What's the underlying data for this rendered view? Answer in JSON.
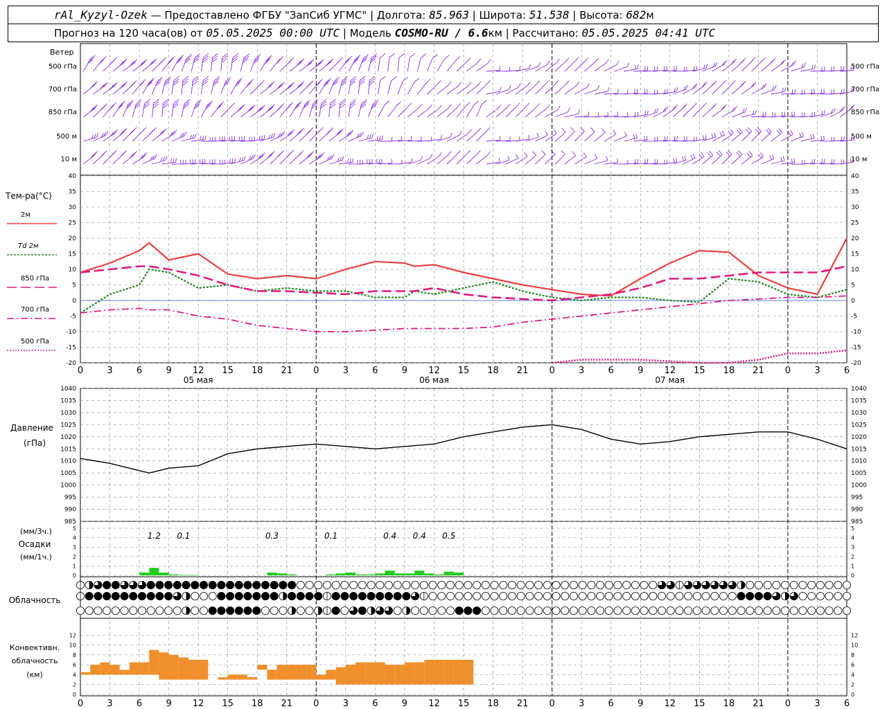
{
  "header": {
    "station": "rAl_Kyzyl-Ozek",
    "provider": " — Предоставлено ФГБУ \"ЗапСиб УГМС\" | ",
    "lon_label": "Долгота: ",
    "lon_value": "85.963",
    "lat_label": " | Широта: ",
    "lat_value": "51.538",
    "alt_label": " | Высота: ",
    "alt_value": "682",
    "alt_unit": "м",
    "forecast_label": "Прогноз на 120 часа(ов) от ",
    "forecast_time": "05.05.2025 00:00 UTC",
    "model_label": " | Модель ",
    "model_name": "COSMO-RU / 6.6",
    "model_unit": "км",
    "calc_label": " | Рассчитано: ",
    "calc_time": "05.05.2025 04:41 UTC"
  },
  "colors": {
    "t2m": "#e8413c",
    "td2m": "#1e8a1e",
    "t850": "#e0197d",
    "t700": "#e0197d",
    "t500": "#e0197d",
    "pressure": "#000000",
    "precip": "#22cc22",
    "convective": "#f0902c",
    "wind": "#8a2be2",
    "zero_line": "#3355ff",
    "grid": "#888888"
  },
  "wind_panel": {
    "title": "Ветер",
    "levels": [
      "500 гПа",
      "700 гПа",
      "850 гПа",
      "500 м",
      "10  м"
    ]
  },
  "x_axis": {
    "hour_ticks": [
      "0",
      "3",
      "6",
      "9",
      "12",
      "15",
      "18",
      "21",
      "0",
      "3",
      "6",
      "9",
      "12",
      "15",
      "18",
      "21",
      "0",
      "3",
      "6",
      "9",
      "12",
      "15",
      "18",
      "21",
      "0",
      "3",
      "6"
    ],
    "dates": [
      "05 мая",
      "06 мая",
      "07 мая"
    ]
  },
  "chart_data": [
    {
      "type": "line",
      "panel": "temperature",
      "ylabel": "Тем-ра(°C)",
      "ylim": [
        -20,
        40
      ],
      "yticks": [
        "40",
        "35",
        "30",
        "25",
        "20",
        "15",
        "10",
        "5",
        "0",
        "-5",
        "-10",
        "-15",
        "-20"
      ],
      "x": [
        0,
        3,
        6,
        7,
        9,
        12,
        15,
        18,
        21,
        24,
        27,
        30,
        33,
        34,
        36,
        39,
        42,
        45,
        48,
        51,
        54,
        57,
        60,
        63,
        66,
        69,
        72,
        75,
        78
      ],
      "series": [
        {
          "name": "2м",
          "values": [
            9,
            12,
            16,
            18.5,
            13,
            15,
            8.5,
            7,
            8,
            7,
            10,
            12.5,
            12,
            11,
            11.5,
            9,
            7,
            5,
            3.5,
            2,
            1.5,
            7,
            12,
            16,
            15.5,
            8,
            4,
            2,
            20
          ]
        },
        {
          "name": "Td  2м",
          "values": [
            -4,
            2,
            5,
            10,
            9,
            4,
            5,
            3,
            4,
            3,
            3,
            1,
            1,
            3,
            2,
            4,
            6,
            3,
            1,
            0,
            1,
            1,
            0,
            -0.5,
            7,
            6,
            2,
            1,
            3.5
          ]
        },
        {
          "name": "850 гПа",
          "values": [
            9,
            10,
            11,
            11,
            10,
            8,
            5,
            3,
            3,
            2.5,
            2,
            3,
            3,
            3,
            4,
            2,
            1,
            0.5,
            0,
            1,
            2,
            4,
            7,
            7,
            8,
            9,
            9,
            9,
            11
          ]
        },
        {
          "name": "700 гПа",
          "values": [
            -4,
            -3,
            -2.5,
            -3,
            -3,
            -5,
            -6,
            -8,
            -9,
            -10,
            -10,
            -9.5,
            -9,
            -9,
            -9,
            -9,
            -8.5,
            -7,
            -6,
            -5,
            -4,
            -3,
            -2,
            -1,
            0,
            0.5,
            1,
            1,
            1.5
          ]
        },
        {
          "name": "500 гПа",
          "values": [
            null,
            null,
            null,
            null,
            null,
            null,
            null,
            null,
            null,
            null,
            null,
            null,
            null,
            null,
            null,
            null,
            null,
            null,
            -20,
            -19,
            -19,
            -19,
            -19.5,
            -20,
            -20,
            -19,
            -17,
            -17,
            -16
          ]
        }
      ]
    },
    {
      "type": "line",
      "panel": "pressure",
      "ylabel": "Давление",
      "ylabel2": "(гПа)",
      "ylim": [
        985,
        1040
      ],
      "yticks": [
        "1040",
        "1035",
        "1030",
        "1025",
        "1020",
        "1015",
        "1010",
        "1005",
        "1000",
        "995",
        "990",
        "985"
      ],
      "x": [
        0,
        3,
        6,
        7,
        9,
        12,
        15,
        18,
        21,
        24,
        27,
        30,
        33,
        36,
        39,
        42,
        45,
        48,
        51,
        54,
        57,
        60,
        63,
        66,
        69,
        72,
        75,
        78
      ],
      "values": [
        1011,
        1009,
        1006,
        1005,
        1007,
        1008,
        1013,
        1015,
        1016,
        1017,
        1016,
        1015,
        1016,
        1017,
        1020,
        1022,
        1024,
        1025,
        1023,
        1019,
        1017,
        1018,
        1020,
        1021,
        1022,
        1022,
        1019,
        1015
      ]
    },
    {
      "type": "bar",
      "panel": "precipitation",
      "ylabel": "(мм/3ч.)",
      "ylabel2": "Осадки",
      "ylabel3": "(мм/1ч.)",
      "ylim": [
        0,
        5
      ],
      "yticks": [
        "5",
        "4",
        "3",
        "2",
        "1",
        "0"
      ],
      "totals": [
        {
          "x": 7.5,
          "label": "1.2"
        },
        {
          "x": 10.5,
          "label": "0.1"
        },
        {
          "x": 19.5,
          "label": "0.3"
        },
        {
          "x": 25.5,
          "label": "0.1"
        },
        {
          "x": 31.5,
          "label": "0.4"
        },
        {
          "x": 34.5,
          "label": "0.4"
        },
        {
          "x": 37.5,
          "label": "0.5"
        }
      ],
      "x": [
        6,
        7,
        8,
        9,
        10,
        11,
        19,
        20,
        21,
        25,
        26,
        27,
        28,
        29,
        30,
        31,
        32,
        33,
        34,
        35,
        36,
        37,
        38
      ],
      "values": [
        0.3,
        0.8,
        0.3,
        0.1,
        0.05,
        0.05,
        0.3,
        0.2,
        0.1,
        0.1,
        0.2,
        0.3,
        0.1,
        0.1,
        0.2,
        0.5,
        0.2,
        0.2,
        0.5,
        0.2,
        0.1,
        0.4,
        0.3
      ]
    },
    {
      "type": "bar",
      "panel": "convective",
      "ylabel": "Конвективн.",
      "ylabel2": "облачность",
      "ylabel3": "(км)",
      "ylim": [
        0,
        14
      ],
      "yticks": [
        "12",
        "10",
        "8",
        "6",
        "4",
        "2",
        "0"
      ],
      "x": [
        0,
        1,
        2,
        3,
        4,
        5,
        6,
        7,
        8,
        9,
        10,
        11,
        12,
        13,
        14,
        15,
        16,
        17,
        18,
        19,
        20,
        21,
        22,
        23,
        24,
        25,
        26,
        27,
        28,
        29,
        30,
        31,
        32,
        33,
        34,
        35,
        36,
        37,
        38,
        39
      ],
      "bottom": [
        4,
        4,
        4,
        4,
        4,
        4,
        4,
        4,
        3,
        3,
        3,
        3,
        3,
        null,
        3,
        3,
        3,
        3,
        5,
        3,
        3,
        3,
        3,
        3,
        3,
        3,
        2,
        2,
        2,
        2,
        2,
        2,
        2,
        2,
        2,
        2,
        2,
        2,
        2,
        2
      ],
      "top": [
        4.5,
        6,
        6.5,
        6,
        5,
        6.5,
        6.5,
        9,
        8.5,
        8,
        7.5,
        7,
        7,
        null,
        3.5,
        4,
        4,
        3.5,
        6,
        5,
        6,
        6,
        6,
        6,
        4,
        5,
        5.5,
        6,
        6.5,
        6.5,
        6.5,
        6,
        6,
        6.5,
        6.5,
        7,
        7,
        7,
        7,
        7
      ]
    }
  ],
  "cloud_panel": {
    "title": "Облачность",
    "rows": [
      "1234433344444444444444444000000000000000000000000000000000000000003313333332000000000000",
      "1444444444432000444444424444144444444431000000000000000000000000000000000004444323000000",
      "0000000000002004444440002002140342330200000444000000000000000000000000000000000000000000"
    ]
  }
}
